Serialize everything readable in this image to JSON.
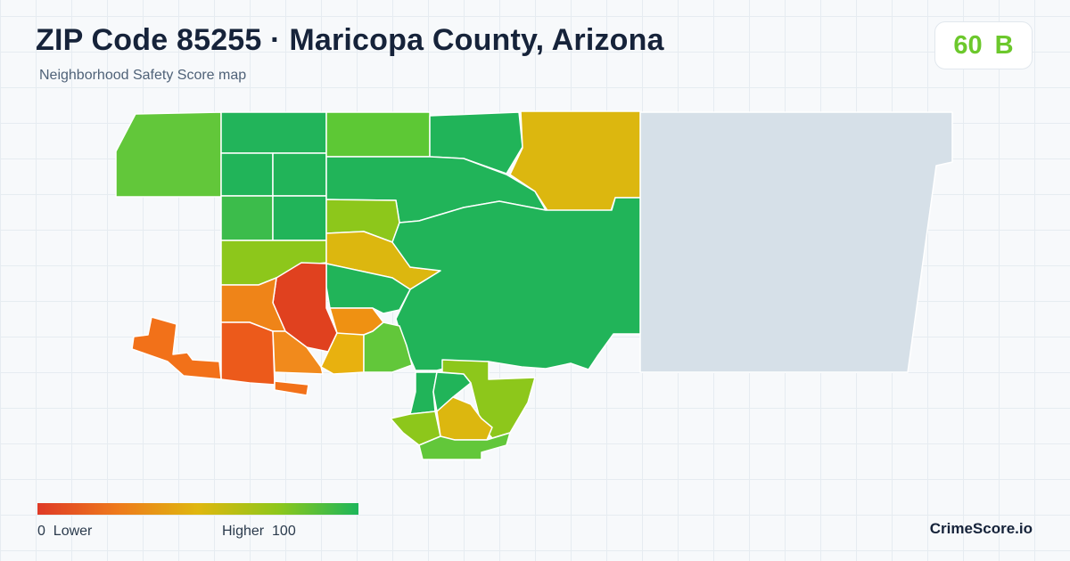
{
  "header": {
    "title": "ZIP Code 85255 · Maricopa County, Arizona",
    "subtitle": "Neighborhood Safety Score map"
  },
  "score": {
    "value": "60",
    "grade": "B",
    "color": "#6cc82c"
  },
  "legend": {
    "low_label": "0  Lower",
    "high_label": "Higher  100",
    "colors": [
      "#df3a26",
      "#ee7a1c",
      "#dfb70f",
      "#8ec71b",
      "#1db65a"
    ]
  },
  "brand": "CrimeScore.io",
  "colors": {
    "no_data": "#d6e0e8",
    "background": "#f7f9fb",
    "text": "#16233a"
  }
}
